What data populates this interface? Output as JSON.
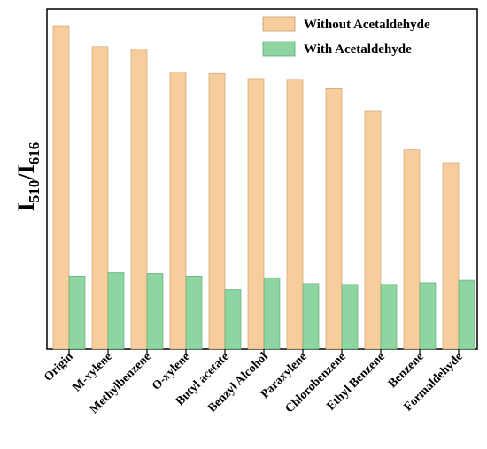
{
  "chart_data": {
    "type": "bar",
    "title": "",
    "xlabel": "",
    "ylabel": {
      "base": "I",
      "sub1": "510",
      "sep": "/I",
      "sub2": "616"
    },
    "categories": [
      "Origin",
      "M-xylene",
      "Methylbenzene",
      "O-xylene",
      "Butyl acetate",
      "Benzyl Alcohol",
      "Paraxylene",
      "Chlorobenzene",
      "Ethyl Benzene",
      "Benzene",
      "Formaldehyde"
    ],
    "series": [
      {
        "name": "Without Acetaldehyde",
        "color": "#f8cd9d",
        "values": [
          3.5,
          3.25,
          3.22,
          2.95,
          2.93,
          2.87,
          2.86,
          2.75,
          2.48,
          2.02,
          1.87
        ]
      },
      {
        "name": "With Acetaldehyde",
        "color": "#8dd5a1",
        "values": [
          0.52,
          0.56,
          0.55,
          0.52,
          0.36,
          0.5,
          0.43,
          0.42,
          0.42,
          0.44,
          0.47
        ]
      }
    ],
    "ylim": [
      -0.35,
      3.7
    ],
    "yaxis_ticks_shown": false,
    "grid": false,
    "legend_position": "top-right"
  }
}
